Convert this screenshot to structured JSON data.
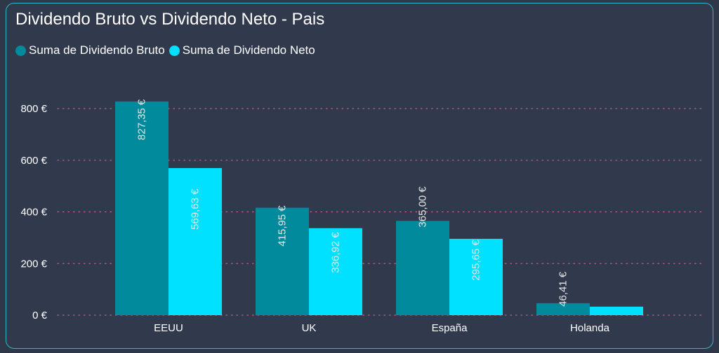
{
  "colors": {
    "bruto": "#008a9c",
    "neto": "#00e1ff",
    "grid": "#c0607a",
    "text": "#ffffff",
    "label": "#e6e6e6"
  },
  "chart_data": {
    "type": "bar",
    "title": "Dividendo Bruto vs Dividendo Neto - Pais",
    "categories": [
      "EEUU",
      "UK",
      "España",
      "Holanda"
    ],
    "series": [
      {
        "name": "Suma de Dividendo Bruto",
        "values": [
          827.35,
          415.95,
          365.0,
          46.41
        ],
        "labels": [
          "827,35 €",
          "415,95 €",
          "365,00 €",
          "46,41 €"
        ]
      },
      {
        "name": "Suma de Dividendo Neto",
        "values": [
          569.63,
          336.92,
          295.65,
          33.0
        ],
        "labels": [
          "569,63 €",
          "336,92 €",
          "295,65 €",
          ""
        ]
      }
    ],
    "yticks": [
      0,
      200,
      400,
      600,
      800
    ],
    "ytick_labels": [
      "0 €",
      "200 €",
      "400 €",
      "600 €",
      "800 €"
    ],
    "ylim": [
      0,
      800
    ],
    "grid": true,
    "legend": "top-left"
  }
}
